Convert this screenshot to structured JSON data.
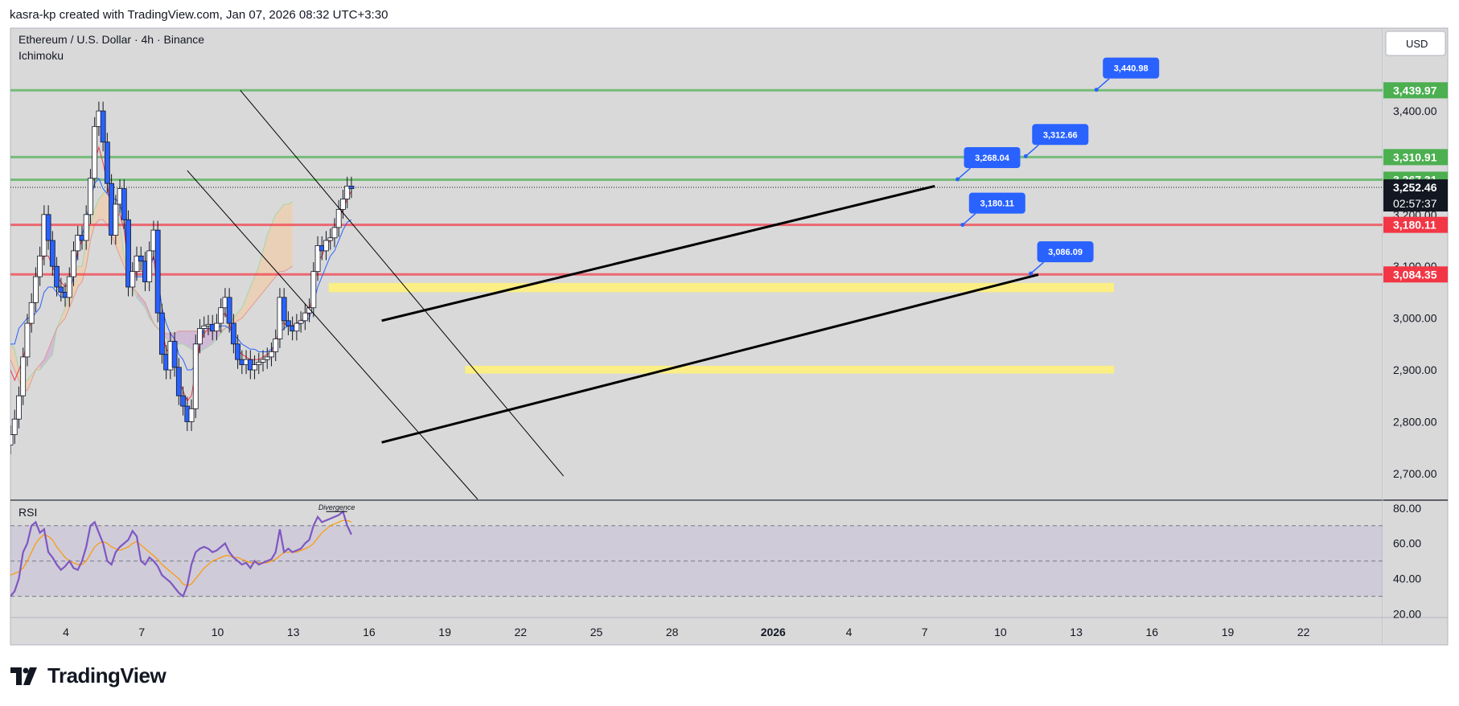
{
  "header": {
    "credit": "kasra-kp created with TradingView.com, Jan 07, 2026 08:32 UTC+3:30"
  },
  "brand": {
    "name": "TradingView"
  },
  "chart_data": {
    "type": "candlestick",
    "symbol": "Ethereum / U.S. Dollar · 4h · Binance",
    "indicator": "Ichimoku",
    "currency": "USD",
    "price_ylim": [
      2650,
      3560
    ],
    "price_ticks": [
      "2,700.00",
      "2,800.00",
      "2,900.00",
      "3,000.00",
      "3,100.00",
      "3,200.00",
      "3,400.00"
    ],
    "price_tick_values": [
      2700,
      2800,
      2900,
      3000,
      3100,
      3200,
      3400
    ],
    "x_ticks": [
      {
        "label": "4",
        "day": 4
      },
      {
        "label": "7",
        "day": 7
      },
      {
        "label": "10",
        "day": 10
      },
      {
        "label": "13",
        "day": 13
      },
      {
        "label": "16",
        "day": 16
      },
      {
        "label": "19",
        "day": 19
      },
      {
        "label": "22",
        "day": 22
      },
      {
        "label": "25",
        "day": 25
      },
      {
        "label": "28",
        "day": 28
      },
      {
        "label": "2026",
        "day": 32,
        "bold": true
      },
      {
        "label": "4",
        "day": 35
      },
      {
        "label": "7",
        "day": 38
      },
      {
        "label": "10",
        "day": 41
      },
      {
        "label": "13",
        "day": 44
      },
      {
        "label": "16",
        "day": 47
      },
      {
        "label": "19",
        "day": 50
      },
      {
        "label": "22",
        "day": 53
      }
    ],
    "levels": [
      {
        "price": 3439.97,
        "label": "3,439.97",
        "color": "#4caf50"
      },
      {
        "price": 3310.91,
        "label": "3,310.91",
        "color": "#4caf50"
      },
      {
        "price": 3267.31,
        "label": "3,267.31",
        "color": "#4caf50"
      },
      {
        "price": 3180.11,
        "label": "3,180.11",
        "color": "#f23645"
      },
      {
        "price": 3084.35,
        "label": "3,084.35",
        "color": "#f23645"
      }
    ],
    "current_price": {
      "price": 3252.46,
      "label": "3,252.46",
      "countdown": "02:57:37"
    },
    "zones": [
      {
        "from_day": 14.4,
        "to_day": 45.5,
        "low": 3050,
        "high": 3068,
        "color": "#fff176"
      },
      {
        "from_day": 19.8,
        "to_day": 45.5,
        "low": 2893,
        "high": 2908,
        "color": "#fff176"
      }
    ],
    "trendlines": [
      {
        "p1": [
          16.5,
          2995
        ],
        "p2": [
          38.4,
          3255
        ],
        "color": "#000000",
        "width": 3
      },
      {
        "p1": [
          16.5,
          2760
        ],
        "p2": [
          42.5,
          3084
        ],
        "color": "#000000",
        "width": 3
      },
      {
        "p1": [
          10.9,
          3440
        ],
        "p2": [
          23.7,
          2695
        ],
        "color": "#000000",
        "width": 1
      },
      {
        "p1": [
          8.8,
          3285
        ],
        "p2": [
          20.3,
          2650
        ],
        "color": "#000000",
        "width": 1
      }
    ],
    "callouts": [
      {
        "label": "3,440.98",
        "day": 44.8,
        "price": 3440.98
      },
      {
        "label": "3,312.66",
        "day": 42.0,
        "price": 3312.66
      },
      {
        "label": "3,268.04",
        "day": 39.3,
        "price": 3268.04
      },
      {
        "label": "3,180.11",
        "day": 39.5,
        "price": 3180.11
      },
      {
        "label": "3,086.09",
        "day": 42.2,
        "price": 3086.09
      }
    ],
    "ohlc_close": [
      2775,
      2805,
      2850,
      2925,
      2990,
      3030,
      3080,
      3120,
      3200,
      3150,
      3100,
      3060,
      3050,
      3040,
      3080,
      3130,
      3160,
      3150,
      3200,
      3270,
      3370,
      3400,
      3340,
      3260,
      3160,
      3220,
      3250,
      3190,
      3060,
      3090,
      3120,
      3110,
      3070,
      3130,
      3170,
      3010,
      2930,
      2900,
      2955,
      2905,
      2850,
      2830,
      2800,
      2825,
      2950,
      2980,
      2985,
      2988,
      2975,
      2990,
      3020,
      3040,
      2990,
      2950,
      2920,
      2910,
      2920,
      2900,
      2910,
      2915,
      2920,
      2925,
      2935,
      2960,
      3040,
      2995,
      2985,
      2975,
      2990,
      2995,
      3010,
      3020,
      3090,
      3140,
      3130,
      3150,
      3155,
      3175,
      3210,
      3230,
      3255,
      3250
    ],
    "tenkan": [
      2900,
      2880,
      2900,
      2920,
      2960,
      3000,
      3050,
      3100,
      3120,
      3120,
      3100,
      3080,
      3070,
      3060,
      3070,
      3100,
      3130,
      3150,
      3160,
      3230,
      3300,
      3330,
      3300,
      3260,
      3200,
      3200,
      3200,
      3170,
      3100,
      3080,
      3090,
      3090,
      3090,
      3100,
      3120,
      3050,
      2980,
      2940,
      2930,
      2920,
      2880,
      2860,
      2840,
      2850,
      2900,
      2950,
      2970,
      2980,
      2975,
      2980,
      3000,
      3010,
      2990,
      2960,
      2940,
      2930,
      2925,
      2920,
      2920,
      2920,
      2925,
      2930,
      2935,
      2950,
      2990,
      2990,
      2985,
      2985,
      2990,
      2995,
      3000,
      3010,
      3060,
      3110,
      3120,
      3140,
      3150,
      3165,
      3190,
      3210,
      3230,
      3245
    ],
    "kijun": [
      2950,
      2950,
      2980,
      2990,
      3000,
      3000,
      3010,
      3020,
      3050,
      3060,
      3060,
      3050,
      3040,
      3040,
      3050,
      3080,
      3130,
      3160,
      3190,
      3230,
      3260,
      3270,
      3250,
      3240,
      3230,
      3230,
      3220,
      3190,
      3100,
      3080,
      3080,
      3080,
      3080,
      3090,
      3120,
      3080,
      3020,
      2990,
      2970,
      2960,
      2930,
      2920,
      2900,
      2900,
      2910,
      2950,
      2980,
      2980,
      2980,
      2980,
      2985,
      2985,
      2980,
      2970,
      2960,
      2950,
      2945,
      2940,
      2940,
      2935,
      2935,
      2935,
      2940,
      2950,
      2970,
      2980,
      2985,
      2985,
      2985,
      2990,
      2995,
      3000,
      3030,
      3060,
      3080,
      3100,
      3120,
      3130,
      3150,
      3170,
      3185,
      3190
    ],
    "kumo_a": [
      2950,
      2940,
      2900,
      2880,
      2880,
      2890,
      2900,
      2900,
      2910,
      2920,
      2930,
      2980,
      3000,
      3020,
      3050,
      3080,
      3100,
      3100,
      3150,
      3180,
      3210,
      3230,
      3240,
      3250,
      3230,
      3200,
      3180,
      3120,
      3080,
      3060,
      3040,
      3030,
      3020,
      3000,
      2990,
      2980,
      2970,
      2960,
      2955,
      2950,
      2950,
      2950,
      2945,
      2940,
      2935,
      2935,
      2940,
      2945,
      2950,
      2960,
      2970,
      2980,
      2990,
      3000,
      3010,
      3020,
      3040,
      3060,
      3080,
      3100,
      3130,
      3160,
      3180,
      3200,
      3210,
      3220,
      3220,
      3225
    ],
    "kumo_b": [
      2920,
      2900,
      2880,
      2860,
      2860,
      2880,
      2900,
      2910,
      2920,
      2940,
      2960,
      2980,
      2990,
      3000,
      3020,
      3040,
      3060,
      3070,
      3100,
      3150,
      3180,
      3190,
      3190,
      3180,
      3160,
      3140,
      3120,
      3100,
      3080,
      3060,
      3050,
      3040,
      3030,
      3010,
      2990,
      2980,
      2975,
      2970,
      2970,
      2970,
      2975,
      2975,
      2975,
      2975,
      2975,
      2975,
      2975,
      2975,
      2975,
      2975,
      2975,
      2980,
      2985,
      2990,
      2995,
      3000,
      3010,
      3020,
      3030,
      3040,
      3050,
      3060,
      3070,
      3080,
      3090,
      3090,
      3095,
      3100
    ],
    "rsi": {
      "label": "RSI",
      "ylim": [
        18,
        84
      ],
      "ticks": [
        "80.00",
        "60.00",
        "40.00",
        "20.00"
      ],
      "tick_values": [
        80,
        60,
        40,
        20
      ],
      "upper_band": 70,
      "lower_band": 30,
      "annotation": "Divergence",
      "values": [
        30,
        33,
        40,
        55,
        60,
        70,
        72,
        66,
        68,
        55,
        52,
        48,
        45,
        47,
        50,
        46,
        45,
        50,
        58,
        70,
        72,
        66,
        60,
        50,
        48,
        55,
        58,
        60,
        62,
        67,
        64,
        50,
        48,
        52,
        50,
        47,
        42,
        40,
        38,
        35,
        32,
        30,
        36,
        48,
        55,
        57,
        58,
        57,
        55,
        56,
        58,
        60,
        55,
        52,
        50,
        48,
        49,
        46,
        50,
        48,
        49,
        50,
        51,
        55,
        68,
        55,
        57,
        55,
        56,
        57,
        60,
        62,
        70,
        75,
        72,
        73,
        74,
        75,
        76,
        78,
        70,
        65
      ],
      "ma": [
        42,
        43,
        44,
        46,
        50,
        55,
        60,
        63,
        65,
        64,
        62,
        58,
        55,
        52,
        50,
        49,
        48,
        48,
        50,
        54,
        58,
        60,
        61,
        60,
        58,
        57,
        56,
        57,
        58,
        60,
        61,
        59,
        57,
        55,
        53,
        51,
        48,
        46,
        44,
        42,
        40,
        37,
        36,
        37,
        40,
        43,
        46,
        48,
        50,
        51,
        52,
        53,
        53,
        52,
        52,
        51,
        50,
        49,
        49,
        49,
        49,
        49,
        50,
        51,
        53,
        55,
        55,
        55,
        55,
        56,
        57,
        58,
        60,
        63,
        66,
        68,
        70,
        71,
        72,
        73,
        73,
        72
      ]
    }
  }
}
